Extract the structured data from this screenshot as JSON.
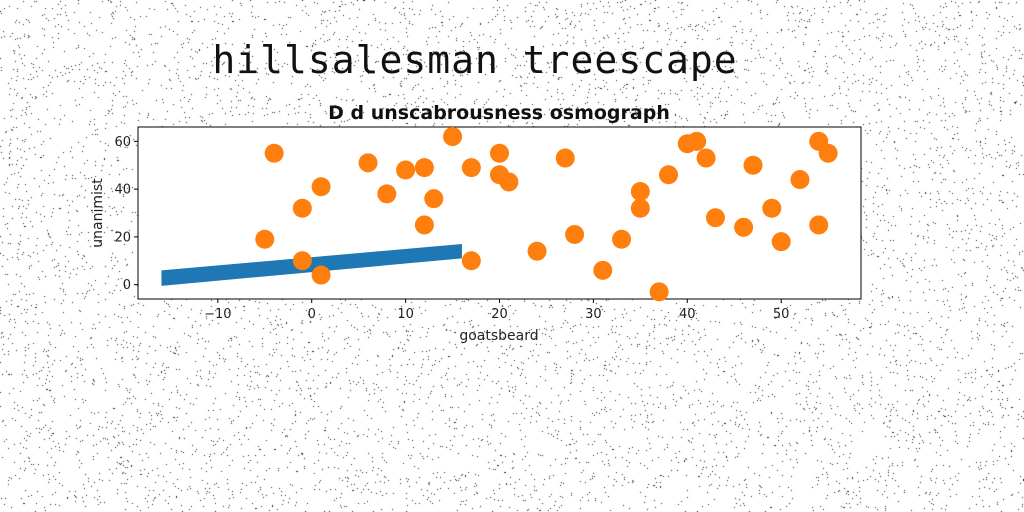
{
  "figure_title": "hillsalesman treescape",
  "chart_data": {
    "type": "scatter",
    "title": "D d unscabrousness osmograph",
    "xlabel": "goatsbeard",
    "ylabel": "unanimist",
    "xlim": [
      -18.5,
      58.5
    ],
    "ylim": [
      -6,
      66
    ],
    "xticks": [
      -10,
      0,
      10,
      20,
      30,
      40,
      50
    ],
    "yticks": [
      0,
      20,
      40,
      60
    ],
    "grid": false,
    "band": {
      "color": "#1f77b4",
      "x": [
        -16,
        16
      ],
      "y_lower": [
        -0.5,
        11
      ],
      "y_upper": [
        6,
        17
      ]
    },
    "series": [
      {
        "color": "#ff7f0e",
        "points": [
          [
            -5,
            19
          ],
          [
            -4,
            55
          ],
          [
            -1,
            32
          ],
          [
            -1,
            10
          ],
          [
            1,
            41
          ],
          [
            1,
            4
          ],
          [
            6,
            51
          ],
          [
            8,
            38
          ],
          [
            10,
            48
          ],
          [
            12,
            49
          ],
          [
            12,
            25
          ],
          [
            13,
            36
          ],
          [
            15,
            62
          ],
          [
            17,
            49
          ],
          [
            17,
            10
          ],
          [
            20,
            55
          ],
          [
            20,
            46
          ],
          [
            21,
            43
          ],
          [
            24,
            14
          ],
          [
            27,
            53
          ],
          [
            28,
            21
          ],
          [
            31,
            6
          ],
          [
            33,
            19
          ],
          [
            35,
            39
          ],
          [
            35,
            32
          ],
          [
            37,
            -3
          ],
          [
            38,
            46
          ],
          [
            40,
            59
          ],
          [
            41,
            60
          ],
          [
            42,
            53
          ],
          [
            43,
            28
          ],
          [
            46,
            24
          ],
          [
            47,
            50
          ],
          [
            49,
            32
          ],
          [
            50,
            18
          ],
          [
            52,
            44
          ],
          [
            54,
            60
          ],
          [
            54,
            25
          ],
          [
            55,
            55
          ]
        ]
      }
    ]
  }
}
